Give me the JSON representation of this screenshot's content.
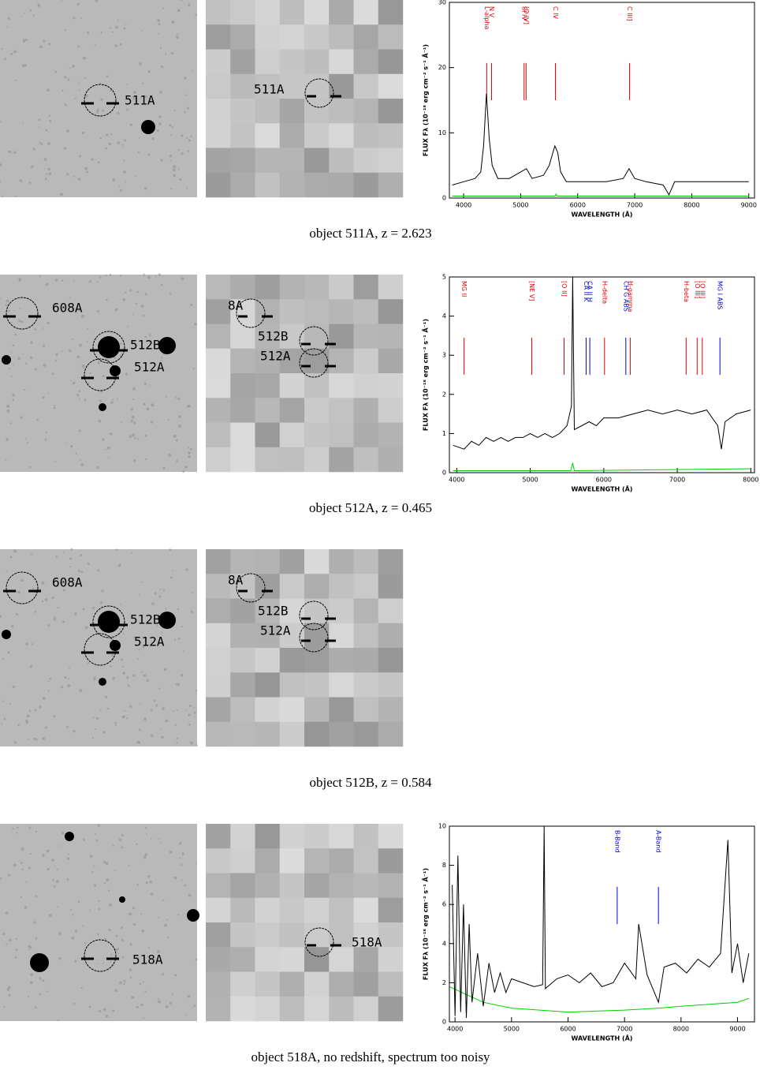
{
  "panels": [
    {
      "caption": "object 511A, z = 2.623",
      "image_labels": [
        "511A"
      ],
      "thumb_labels": [
        "511A"
      ],
      "spectrum": {
        "x_label": "WAVELENGTH (Å)",
        "y_label": "FLUX Fλ (10⁻¹⁸ erg cm⁻² s⁻¹ Å⁻¹)",
        "xlim": [
          3750,
          9100
        ],
        "xticks": [
          4000,
          5000,
          6000,
          7000,
          8000,
          9000
        ],
        "ylim": [
          0,
          30
        ],
        "yticks": [
          0,
          10,
          20,
          30
        ],
        "lines": [
          {
            "label": "L-alpha",
            "x": 4405,
            "color": "#e00000"
          },
          {
            "label": "N V",
            "x": 4490,
            "color": "#e00000"
          },
          {
            "label": "SI IV",
            "x": 5060,
            "color": "#e00000"
          },
          {
            "label": "[O IV]",
            "x": 5095,
            "color": "#e00000"
          },
          {
            "label": "C IV",
            "x": 5610,
            "color": "#e00000"
          },
          {
            "label": "C III]",
            "x": 6910,
            "color": "#e00000"
          }
        ],
        "flux": {
          "x": [
            3800,
            4000,
            4200,
            4300,
            4350,
            4400,
            4450,
            4500,
            4600,
            4800,
            5000,
            5100,
            5200,
            5400,
            5500,
            5600,
            5650,
            5700,
            5800,
            6000,
            6500,
            6800,
            6900,
            7000,
            7200,
            7500,
            7600,
            7700,
            8000,
            8500,
            9000
          ],
          "values": [
            2,
            2.5,
            3,
            4,
            8,
            16,
            9,
            5,
            3,
            3,
            4,
            4.5,
            3,
            3.5,
            5,
            8,
            7,
            4,
            2.5,
            2.5,
            2.5,
            3,
            4.5,
            3,
            2.5,
            2,
            0.5,
            2.5,
            2.5,
            2.5,
            2.5
          ]
        },
        "error": {
          "x": [
            3800,
            5600,
            5620,
            5640,
            9000
          ],
          "values": [
            0.3,
            0.3,
            0.6,
            0.3,
            0.3
          ]
        }
      }
    },
    {
      "caption": "object 512A, z = 0.465",
      "image_labels": [
        "608A",
        "512B",
        "512A"
      ],
      "thumb_labels": [
        "8A",
        "512B",
        "512A"
      ],
      "spectrum": {
        "x_label": "WAVELENGTH (Å)",
        "y_label": "FLUX Fλ (10⁻¹⁸ erg cm⁻² s⁻¹ Å⁻¹)",
        "xlim": [
          3900,
          8050
        ],
        "xticks": [
          4000,
          5000,
          6000,
          7000,
          8000
        ],
        "ylim": [
          0,
          5
        ],
        "yticks": [
          0,
          1,
          2,
          3,
          4,
          5
        ],
        "lines": [
          {
            "label": "MG II",
            "x": 4100,
            "color": "#e00000"
          },
          {
            "label": "[NE V]",
            "x": 5020,
            "color": "#e00000"
          },
          {
            "label": "[O II]",
            "x": 5460,
            "color": "#e00000"
          },
          {
            "label": "CA II K",
            "x": 5760,
            "color": "#0000e0"
          },
          {
            "label": "CA II H",
            "x": 5810,
            "color": "#0000e0"
          },
          {
            "label": "H-delta",
            "x": 6010,
            "color": "#e00000"
          },
          {
            "label": "CH G ABS",
            "x": 6300,
            "color": "#0000e0"
          },
          {
            "label": "H-gamma",
            "x": 6360,
            "color": "#e00000"
          },
          {
            "label": "H-beta",
            "x": 7120,
            "color": "#e00000"
          },
          {
            "label": "[O III]",
            "x": 7270,
            "color": "#e00000"
          },
          {
            "label": "[O III]",
            "x": 7340,
            "color": "#e00000"
          },
          {
            "label": "MG I ABS",
            "x": 7580,
            "color": "#0000e0"
          }
        ],
        "flux": {
          "x": [
            3950,
            4100,
            4200,
            4300,
            4400,
            4500,
            4600,
            4700,
            4800,
            4900,
            5000,
            5100,
            5200,
            5300,
            5400,
            5500,
            5560,
            5577,
            5600,
            5700,
            5800,
            5900,
            6000,
            6200,
            6400,
            6600,
            6800,
            7000,
            7200,
            7400,
            7550,
            7600,
            7650,
            7800,
            8000
          ],
          "values": [
            0.7,
            0.6,
            0.8,
            0.7,
            0.9,
            0.8,
            0.9,
            0.8,
            0.9,
            0.9,
            1.0,
            0.9,
            1.0,
            0.9,
            1.0,
            1.2,
            1.7,
            5,
            1.1,
            1.2,
            1.3,
            1.2,
            1.4,
            1.4,
            1.5,
            1.6,
            1.5,
            1.6,
            1.5,
            1.6,
            1.2,
            0.6,
            1.3,
            1.5,
            1.6
          ]
        },
        "error": {
          "x": [
            3950,
            5550,
            5577,
            5600,
            8000
          ],
          "values": [
            0.05,
            0.05,
            0.25,
            0.05,
            0.1
          ]
        }
      }
    },
    {
      "caption": "object 512B, z = 0.584",
      "image_labels": [
        "608A",
        "512B",
        "512A"
      ],
      "thumb_labels": [
        "8A",
        "512B",
        "512A"
      ]
    },
    {
      "caption": "object 518A, no redshift, spectrum too noisy",
      "image_labels": [
        "518A"
      ],
      "thumb_labels": [
        "518A"
      ],
      "spectrum": {
        "x_label": "WAVELENGTH (Å)",
        "y_label": "FLUX Fλ (10⁻¹⁸ erg cm⁻² s⁻¹ Å⁻¹)",
        "xlim": [
          3900,
          9300
        ],
        "xticks": [
          4000,
          5000,
          6000,
          7000,
          8000,
          9000
        ],
        "ylim": [
          0,
          10
        ],
        "yticks": [
          0,
          2,
          4,
          6,
          8,
          10
        ],
        "lines": [
          {
            "label": "B-Band",
            "x": 6870,
            "color": "#0000e0"
          },
          {
            "label": "A-Band",
            "x": 7600,
            "color": "#0000e0"
          }
        ],
        "flux": {
          "x": [
            3950,
            4000,
            4050,
            4100,
            4150,
            4200,
            4250,
            4300,
            4400,
            4500,
            4600,
            4700,
            4800,
            4900,
            5000,
            5200,
            5400,
            5550,
            5577,
            5600,
            5800,
            6000,
            6200,
            6400,
            6600,
            6800,
            7000,
            7200,
            7250,
            7400,
            7600,
            7700,
            7900,
            8100,
            8300,
            8500,
            8700,
            8830,
            8900,
            9000,
            9100,
            9200
          ],
          "values": [
            7,
            0.3,
            8.5,
            0.5,
            6,
            0.2,
            5,
            1,
            3.5,
            0.8,
            3,
            1.5,
            2.5,
            1.5,
            2.2,
            2,
            1.8,
            1.9,
            10,
            1.7,
            2.2,
            2.4,
            2,
            2.5,
            1.8,
            2,
            3,
            2.2,
            5,
            2.4,
            1,
            2.8,
            3,
            2.5,
            3.2,
            2.8,
            3.5,
            9.3,
            2.5,
            4,
            2,
            3.5
          ]
        },
        "error": {
          "x": [
            3900,
            4500,
            5000,
            6000,
            7000,
            7600,
            8000,
            8500,
            9000,
            9200
          ],
          "values": [
            1.8,
            1.0,
            0.7,
            0.5,
            0.6,
            0.7,
            0.8,
            0.9,
            1.0,
            1.2
          ]
        }
      }
    }
  ]
}
